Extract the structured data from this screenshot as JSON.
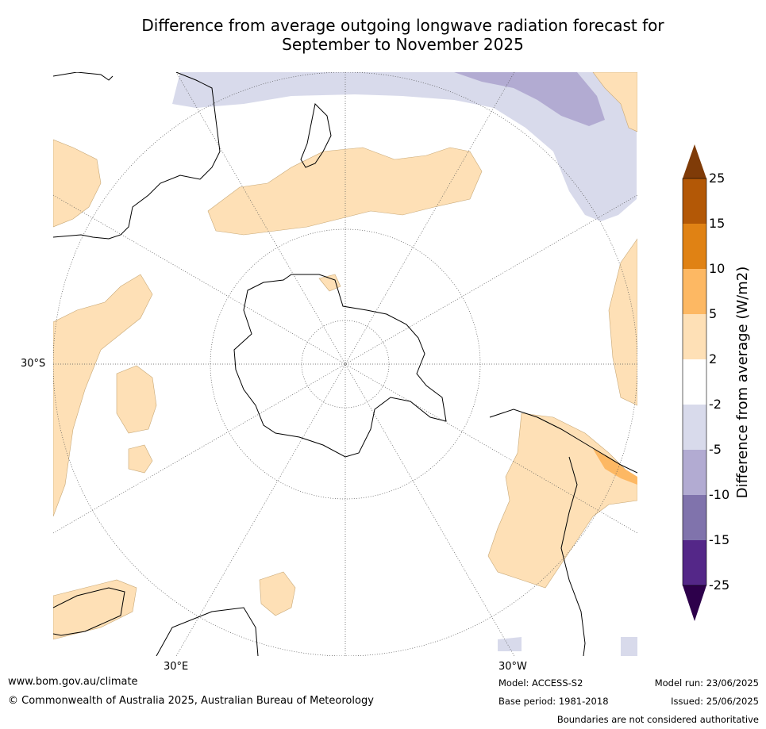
{
  "title_line1": "Difference from average outgoing longwave radiation forecast for",
  "title_line2": "September to November 2025",
  "map": {
    "projection": "south-polar-stereographic",
    "lat_label": "30°S",
    "lon_labels": [
      "30°E",
      "30°W"
    ]
  },
  "colorbar": {
    "label": "Difference from average (W/m2)",
    "ticks": [
      "25",
      "15",
      "10",
      "5",
      "2",
      "-2",
      "-5",
      "-10",
      "-15",
      "-25"
    ],
    "colors": [
      "#7f3b08",
      "#b35806",
      "#e08214",
      "#fdb863",
      "#fee0b6",
      "#ffffff",
      "#d8daeb",
      "#b2abd2",
      "#8073ac",
      "#542788",
      "#2d004b"
    ]
  },
  "footer": {
    "website": "www.bom.gov.au/climate",
    "copyright": "© Commonwealth of Australia 2025, Australian Bureau of Meteorology",
    "model": "Model: ACCESS-S2",
    "base_period": "Base period: 1981-2018",
    "model_run": "Model run: 23/06/2025",
    "issued": "Issued: 25/06/2025",
    "disclaimer": "Boundaries are not considered authoritative"
  }
}
